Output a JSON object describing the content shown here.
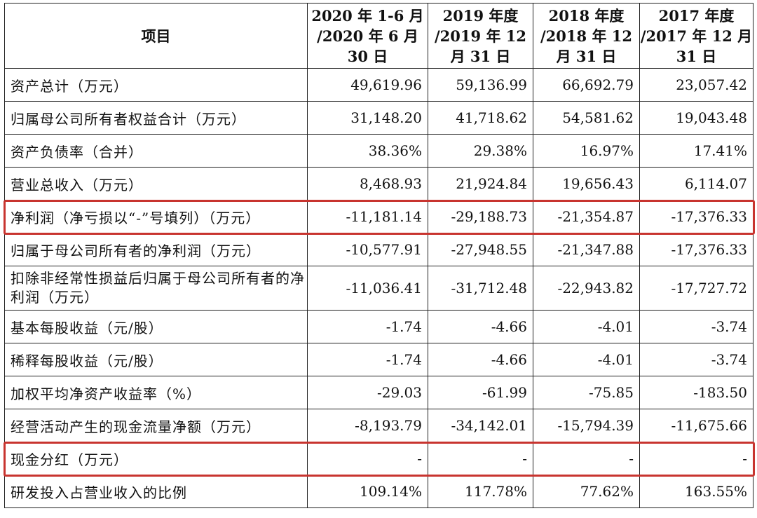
{
  "table": {
    "headers": [
      {
        "lines": [
          "项目"
        ]
      },
      {
        "lines": [
          "2020 年 1-6 月",
          "/2020 年 6 月",
          "30 日"
        ]
      },
      {
        "lines": [
          "2019 年度",
          "/2019 年 12",
          "月 31 日"
        ]
      },
      {
        "lines": [
          "2018 年度",
          "/2018 年 12",
          "月 31 日"
        ]
      },
      {
        "lines": [
          "2017 年度",
          "/2017 年 12 月",
          "31 日"
        ]
      }
    ],
    "rows": [
      {
        "label": "资产总计（万元）",
        "values": [
          "49,619.96",
          "59,136.99",
          "66,692.79",
          "23,057.42"
        ]
      },
      {
        "label": "归属母公司所有者权益合计（万元）",
        "values": [
          "31,148.20",
          "41,718.62",
          "54,581.62",
          "19,043.48"
        ]
      },
      {
        "label": "资产负债率（合并）",
        "values": [
          "38.36%",
          "29.38%",
          "16.97%",
          "17.41%"
        ]
      },
      {
        "label": "营业总收入（万元）",
        "values": [
          "8,468.93",
          "21,924.84",
          "19,656.43",
          "6,114.07"
        ]
      },
      {
        "label": "净利润（净亏损以“-”号填列）（万元）",
        "values": [
          "-11,181.14",
          "-29,188.73",
          "-21,354.87",
          "-17,376.33"
        ]
      },
      {
        "label": "归属于母公司所有者的净利润（万元）",
        "values": [
          "-10,577.91",
          "-27,948.55",
          "-21,347.88",
          "-17,376.33"
        ]
      },
      {
        "label": "扣除非经常性损益后归属于母公司所有者的净利润（万元）",
        "values": [
          "-11,036.41",
          "-31,712.48",
          "-22,943.82",
          "-17,727.72"
        ]
      },
      {
        "label": "基本每股收益（元/股）",
        "values": [
          "-1.74",
          "-4.66",
          "-4.01",
          "-3.74"
        ]
      },
      {
        "label": "稀释每股收益（元/股）",
        "values": [
          "-1.74",
          "-4.66",
          "-4.01",
          "-3.74"
        ]
      },
      {
        "label": "加权平均净资产收益率（%）",
        "values": [
          "-29.03",
          "-61.99",
          "-75.85",
          "-183.50"
        ]
      },
      {
        "label": "经营活动产生的现金流量净额（万元）",
        "values": [
          "-8,193.79",
          "-34,142.01",
          "-15,794.39",
          "-11,675.66"
        ]
      },
      {
        "label": "现金分红（万元）",
        "values": [
          "-",
          "-",
          "-",
          "-"
        ]
      },
      {
        "label": "研发投入占营业收入的比例",
        "values": [
          "109.14%",
          "117.78%",
          "77.62%",
          "163.55%"
        ]
      }
    ],
    "highlight_color": "#c8342f"
  }
}
